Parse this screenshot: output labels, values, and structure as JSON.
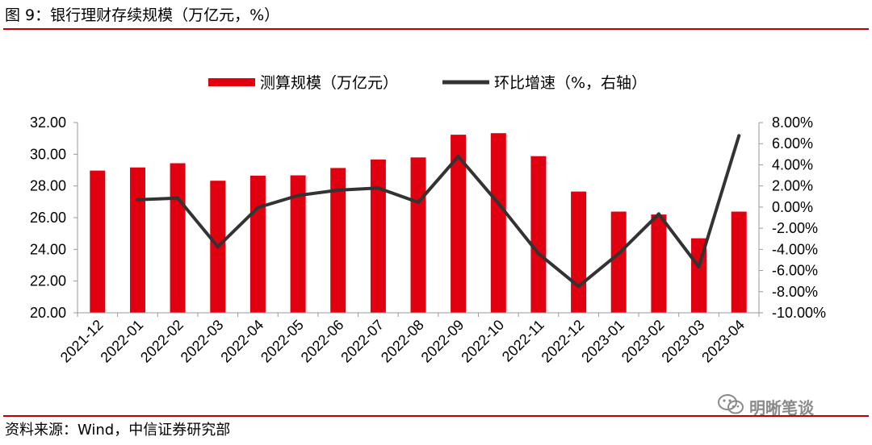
{
  "header": {
    "title": "图 9：银行理财存续规模（万亿元，%）"
  },
  "footer": {
    "source": "资料来源：Wind，中信证券研究部"
  },
  "watermark": {
    "text": "明晰笔谈",
    "icon": "wechat-icon"
  },
  "chart_data": {
    "type": "bar+line",
    "categories": [
      "2021-12",
      "2022-01",
      "2022-02",
      "2022-03",
      "2022-04",
      "2022-05",
      "2022-06",
      "2022-07",
      "2022-08",
      "2022-09",
      "2022-10",
      "2022-11",
      "2022-12",
      "2023-01",
      "2023-02",
      "2023-03",
      "2023-04"
    ],
    "series": [
      {
        "name": "测算规模（万亿元）",
        "type": "bar",
        "axis": "left",
        "color": "#e0000f",
        "values": [
          28.97,
          29.17,
          29.43,
          28.33,
          28.65,
          28.67,
          29.13,
          29.67,
          29.8,
          31.23,
          31.33,
          29.88,
          27.65,
          26.38,
          26.2,
          24.7,
          26.38
        ]
      },
      {
        "name": "环比增速（%，右轴）",
        "type": "line",
        "axis": "right",
        "color": "#333333",
        "values": [
          null,
          0.7,
          0.85,
          -3.75,
          -0.05,
          1.1,
          1.6,
          1.8,
          0.45,
          4.8,
          0.35,
          -4.4,
          -7.5,
          -4.4,
          -0.65,
          -5.65,
          6.75
        ]
      }
    ],
    "y_left": {
      "min": 20,
      "max": 32,
      "step": 2,
      "tick_labels": [
        "20.00",
        "22.00",
        "24.00",
        "26.00",
        "28.00",
        "30.00",
        "32.00"
      ]
    },
    "y_right": {
      "min": -10,
      "max": 8,
      "step": 2,
      "tick_labels": [
        "-10.00%",
        "-8.00%",
        "-6.00%",
        "-4.00%",
        "-2.00%",
        "0.00%",
        "2.00%",
        "4.00%",
        "6.00%",
        "8.00%"
      ]
    },
    "legend_position": "top-center",
    "grid": false
  }
}
